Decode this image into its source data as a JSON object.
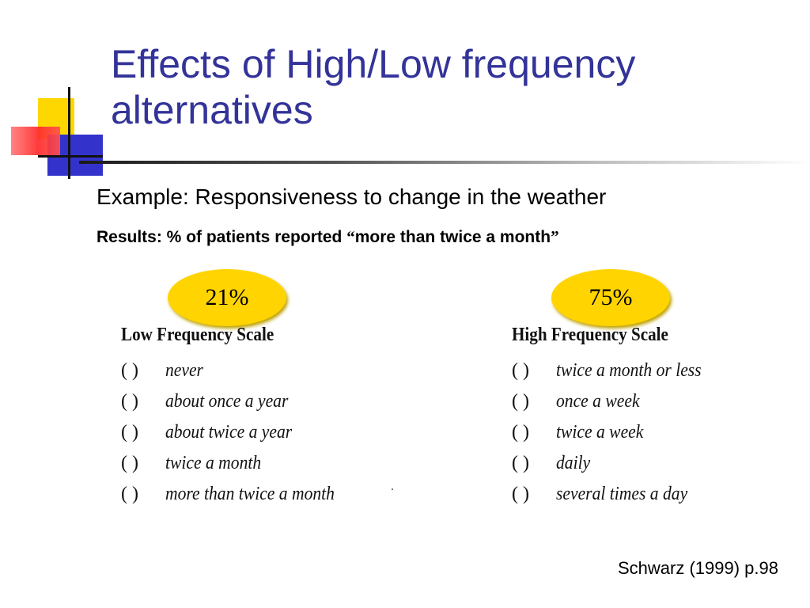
{
  "slide": {
    "title": "Effects of High/Low frequency alternatives",
    "example": "Example: Responsiveness to change in the weather",
    "results_prefix": "Results: % of patients reported ",
    "results_quote_open": "“",
    "results_quote_text": "more than twice a month",
    "results_quote_close": "”",
    "citation": "Schwarz (1999) p.98"
  },
  "colors": {
    "title": "#333399",
    "badge": "#ffd400",
    "deco_yellow": "#ffd700",
    "deco_blue": "#3333cc",
    "deco_red": "#ff2a2a"
  },
  "low_scale": {
    "badge": "21%",
    "title": "Low Frequency Scale",
    "options": [
      {
        "paren": "( )",
        "text": "never"
      },
      {
        "paren": "( )",
        "text": "about once a year"
      },
      {
        "paren": "( )",
        "text": "about twice a year"
      },
      {
        "paren": "( )",
        "text": "twice a month"
      },
      {
        "paren": "( )",
        "text": "more than twice a month"
      }
    ]
  },
  "high_scale": {
    "badge": "75%",
    "title": "High Frequency Scale",
    "options": [
      {
        "paren": "( )",
        "text": "twice a month or less"
      },
      {
        "paren": "( )",
        "text": "once a week"
      },
      {
        "paren": "( )",
        "text": "twice a week"
      },
      {
        "paren": "( )",
        "text": "daily"
      },
      {
        "paren": "( )",
        "text": "several times a day"
      }
    ]
  }
}
